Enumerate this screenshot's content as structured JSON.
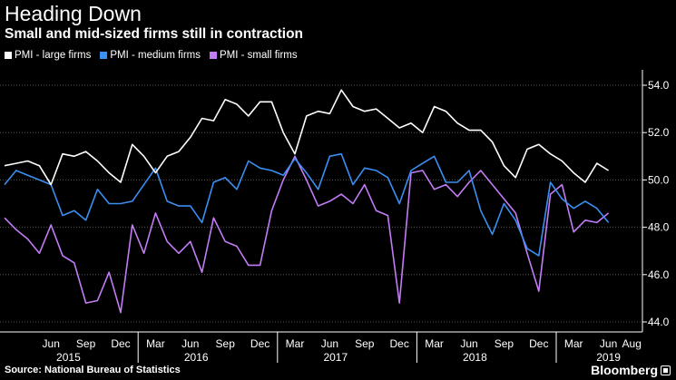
{
  "header": {
    "title": "Heading Down",
    "subtitle": "Small and mid-sized firms still in contraction"
  },
  "footer": {
    "source": "Source: National Bureau of Statistics",
    "brand": "Bloomberg"
  },
  "colors": {
    "background": "#000000",
    "large": "#ffffff",
    "medium": "#3a8ff2",
    "small": "#c37cf5",
    "grid": "#555555"
  },
  "chart_data": {
    "type": "line",
    "title": "Heading Down",
    "subtitle": "Small and mid-sized firms still in contraction",
    "ylabel": "",
    "ylim": [
      43.5,
      55.0
    ],
    "yticks": [
      44.0,
      46.0,
      48.0,
      50.0,
      52.0,
      54.0
    ],
    "ytick_labels": [
      "44.0",
      "46.0",
      "48.0",
      "50.0",
      "52.0",
      "54.0"
    ],
    "grid": true,
    "legend_position": "top-left",
    "x_start": "2015-02",
    "month_tick_labels": [
      {
        "i": 4,
        "label": "Jun"
      },
      {
        "i": 7,
        "label": "Sep"
      },
      {
        "i": 10,
        "label": "Dec"
      },
      {
        "i": 13,
        "label": "Mar"
      },
      {
        "i": 16,
        "label": "Jun"
      },
      {
        "i": 19,
        "label": "Sep"
      },
      {
        "i": 22,
        "label": "Dec"
      },
      {
        "i": 25,
        "label": "Mar"
      },
      {
        "i": 28,
        "label": "Jun"
      },
      {
        "i": 31,
        "label": "Sep"
      },
      {
        "i": 34,
        "label": "Dec"
      },
      {
        "i": 37,
        "label": "Mar"
      },
      {
        "i": 40,
        "label": "Jun"
      },
      {
        "i": 43,
        "label": "Sep"
      },
      {
        "i": 46,
        "label": "Dec"
      },
      {
        "i": 49,
        "label": "Mar"
      },
      {
        "i": 52,
        "label": "Jun"
      },
      {
        "i": 54,
        "label": "Aug"
      }
    ],
    "year_labels": [
      {
        "center": 5.5,
        "label": "2015"
      },
      {
        "center": 16.5,
        "label": "2016"
      },
      {
        "center": 28.5,
        "label": "2017"
      },
      {
        "center": 40.5,
        "label": "2018"
      },
      {
        "center": 52.0,
        "label": "2019"
      }
    ],
    "year_dividers": [
      11,
      23,
      35,
      47
    ],
    "series": [
      {
        "name": "PMI - large firms",
        "color": "#ffffff",
        "values": [
          50.6,
          50.7,
          50.8,
          50.6,
          49.8,
          51.1,
          51.0,
          51.2,
          50.8,
          50.3,
          49.9,
          51.5,
          51.0,
          50.3,
          51.0,
          51.2,
          51.8,
          52.6,
          52.5,
          53.4,
          53.2,
          52.7,
          53.3,
          53.3,
          52.0,
          51.1,
          52.7,
          52.9,
          52.8,
          53.8,
          53.1,
          52.9,
          53.0,
          52.6,
          52.2,
          52.4,
          52.0,
          53.1,
          52.9,
          52.4,
          52.1,
          52.1,
          51.6,
          50.6,
          50.1,
          51.3,
          51.5,
          51.1,
          50.8,
          50.3,
          49.9,
          50.7,
          50.4
        ]
      },
      {
        "name": "PMI - medium firms",
        "color": "#3a8ff2",
        "values": [
          49.8,
          50.4,
          50.2,
          50.0,
          49.8,
          48.5,
          48.7,
          48.3,
          49.6,
          49.0,
          49.0,
          49.1,
          49.8,
          50.5,
          49.1,
          48.9,
          48.9,
          48.2,
          49.9,
          50.1,
          49.6,
          50.8,
          50.5,
          50.4,
          50.2,
          50.9,
          50.3,
          49.6,
          51.0,
          51.1,
          49.8,
          50.5,
          50.4,
          50.1,
          49.0,
          50.4,
          50.7,
          51.0,
          49.9,
          49.9,
          50.4,
          48.7,
          47.7,
          49.0,
          48.3,
          47.1,
          46.8,
          49.9,
          49.2,
          48.8,
          49.1,
          48.8,
          48.2
        ]
      },
      {
        "name": "PMI - small firms",
        "color": "#c37cf5",
        "values": [
          48.4,
          47.9,
          47.5,
          46.9,
          48.1,
          46.8,
          46.5,
          44.8,
          44.9,
          46.1,
          44.4,
          48.1,
          46.9,
          48.6,
          47.4,
          46.9,
          47.4,
          46.1,
          48.4,
          47.4,
          47.2,
          46.4,
          46.4,
          48.7,
          50.0,
          51.0,
          50.0,
          48.9,
          49.1,
          49.4,
          49.0,
          49.8,
          48.7,
          48.5,
          44.8,
          50.3,
          50.4,
          49.6,
          49.8,
          49.3,
          49.9,
          50.4,
          49.8,
          49.2,
          48.6,
          46.9,
          45.3,
          49.4,
          49.8,
          47.8,
          48.3,
          48.2,
          48.6
        ]
      }
    ]
  }
}
